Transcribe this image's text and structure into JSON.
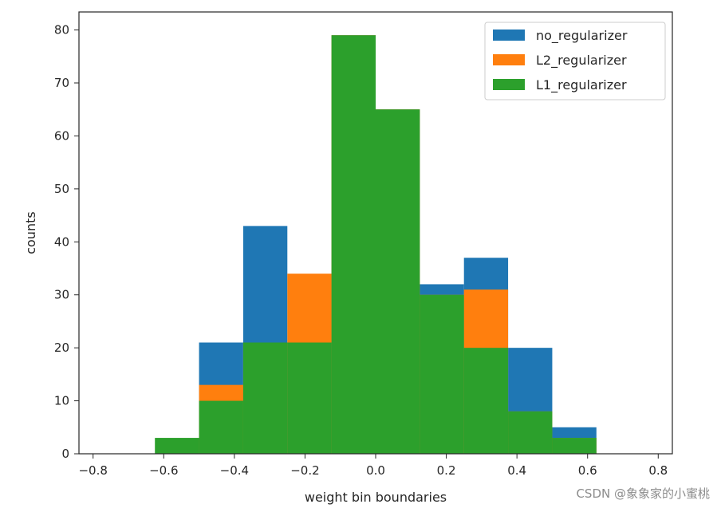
{
  "chart_data": {
    "type": "bar",
    "xlabel": "weight bin boundaries",
    "ylabel": "counts",
    "xlim": [
      -0.84,
      0.84
    ],
    "ylim": [
      0,
      83.4
    ],
    "xticks": [
      -0.8,
      -0.6,
      -0.4,
      -0.2,
      0.0,
      0.2,
      0.4,
      0.6,
      0.8
    ],
    "xtick_labels": [
      "−0.8",
      "−0.6",
      "−0.4",
      "−0.2",
      "0.0",
      "0.2",
      "0.4",
      "0.6",
      "0.8"
    ],
    "yticks": [
      0,
      10,
      20,
      30,
      40,
      50,
      60,
      70,
      80
    ],
    "ytick_labels": [
      "0",
      "10",
      "20",
      "30",
      "40",
      "50",
      "60",
      "70",
      "80"
    ],
    "bin_edges": [
      -0.625,
      -0.5,
      -0.375,
      -0.25,
      -0.125,
      0.0,
      0.125,
      0.25,
      0.375,
      0.5,
      0.625
    ],
    "legend_position": "top-right",
    "grid": false,
    "series": [
      {
        "name": "no_regularizer",
        "color": "#1f77b4",
        "values": [
          0,
          21,
          43,
          21,
          79,
          65,
          32,
          37,
          20,
          5
        ]
      },
      {
        "name": "L2_regularizer",
        "color": "#ff7f0e",
        "values": [
          0,
          13,
          21,
          34,
          79,
          65,
          30,
          31,
          8,
          3
        ]
      },
      {
        "name": "L1_regularizer",
        "color": "#2ca02c",
        "values": [
          3,
          10,
          21,
          21,
          79,
          65,
          30,
          20,
          8,
          3
        ]
      }
    ]
  },
  "watermark": "CSDN @象象家的小蜜桃"
}
